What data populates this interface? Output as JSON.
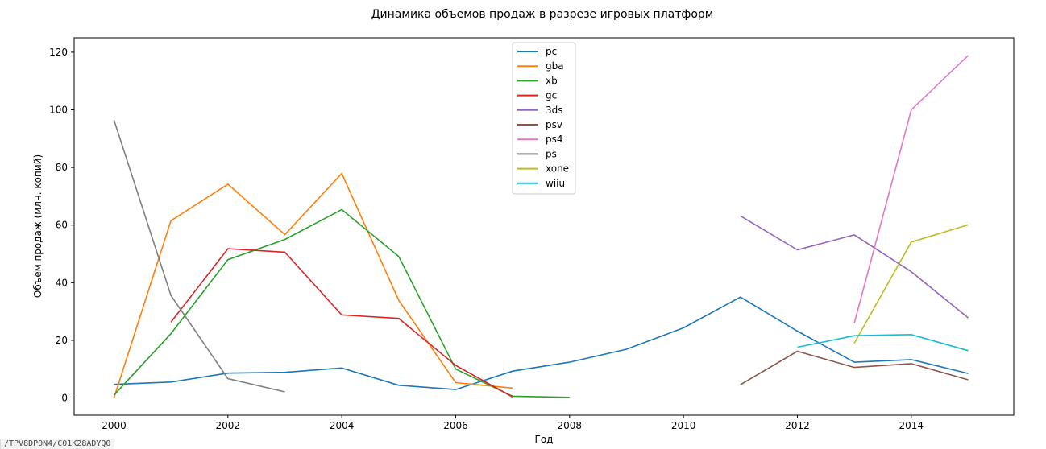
{
  "chart_data": {
    "type": "line",
    "title": "Динамика объемов продаж в разрезе игровых платформ",
    "xlabel": "Год",
    "ylabel": "Объем продаж (млн. копий)",
    "xlim": [
      1999.3,
      2015.8
    ],
    "ylim": [
      -6,
      125
    ],
    "xticks": [
      2000,
      2002,
      2004,
      2006,
      2008,
      2010,
      2012,
      2014
    ],
    "yticks": [
      0,
      20,
      40,
      60,
      80,
      100,
      120
    ],
    "legend_position": "upper center",
    "grid": false,
    "series": [
      {
        "name": "pc",
        "color": "#1f77b4",
        "x": [
          2000,
          2001,
          2002,
          2003,
          2004,
          2005,
          2006,
          2007,
          2008,
          2009,
          2010,
          2011,
          2012,
          2013,
          2014,
          2015
        ],
        "y": [
          4.7,
          5.5,
          8.6,
          8.9,
          10.4,
          4.4,
          2.9,
          9.3,
          12.4,
          16.9,
          24.3,
          35.0,
          23.2,
          12.4,
          13.3,
          8.5
        ]
      },
      {
        "name": "gba",
        "color": "#ff7f0e",
        "x": [
          2000,
          2001,
          2002,
          2003,
          2004,
          2005,
          2006,
          2007
        ],
        "y": [
          0.1,
          61.5,
          74.2,
          56.7,
          77.9,
          33.9,
          5.3,
          3.4
        ]
      },
      {
        "name": "xb",
        "color": "#2ca02c",
        "x": [
          2000,
          2001,
          2002,
          2003,
          2004,
          2005,
          2006,
          2007,
          2008
        ],
        "y": [
          1.0,
          22.3,
          48.0,
          55.0,
          65.4,
          49.1,
          10.0,
          0.6,
          0.2
        ]
      },
      {
        "name": "gc",
        "color": "#d62728",
        "x": [
          2001,
          2002,
          2003,
          2004,
          2005,
          2006,
          2007
        ],
        "y": [
          26.3,
          51.8,
          50.6,
          28.8,
          27.6,
          11.3,
          0.3
        ]
      },
      {
        "name": "3ds",
        "color": "#9467bd",
        "x": [
          2011,
          2012,
          2013,
          2014,
          2015
        ],
        "y": [
          63.2,
          51.4,
          56.6,
          43.8,
          27.8
        ]
      },
      {
        "name": "psv",
        "color": "#8c564b",
        "x": [
          2011,
          2012,
          2013,
          2014,
          2015
        ],
        "y": [
          4.6,
          16.2,
          10.6,
          11.9,
          6.3
        ]
      },
      {
        "name": "ps4",
        "color": "#e377c2",
        "x": [
          2013,
          2014,
          2015
        ],
        "y": [
          25.99,
          100.0,
          118.9
        ]
      },
      {
        "name": "ps",
        "color": "#7f7f7f",
        "x": [
          2000,
          2001,
          2002,
          2003
        ],
        "y": [
          96.4,
          35.6,
          6.7,
          2.1
        ]
      },
      {
        "name": "xone",
        "color": "#bcbd22",
        "x": [
          2013,
          2014,
          2015
        ],
        "y": [
          19.0,
          54.1,
          60.1
        ]
      },
      {
        "name": "wiiu",
        "color": "#17becf",
        "x": [
          2012,
          2013,
          2014,
          2015
        ],
        "y": [
          17.6,
          21.6,
          22.0,
          16.4
        ]
      }
    ]
  },
  "footer_tag": "/TPV8DP0N4/C01K28ADYQ0"
}
